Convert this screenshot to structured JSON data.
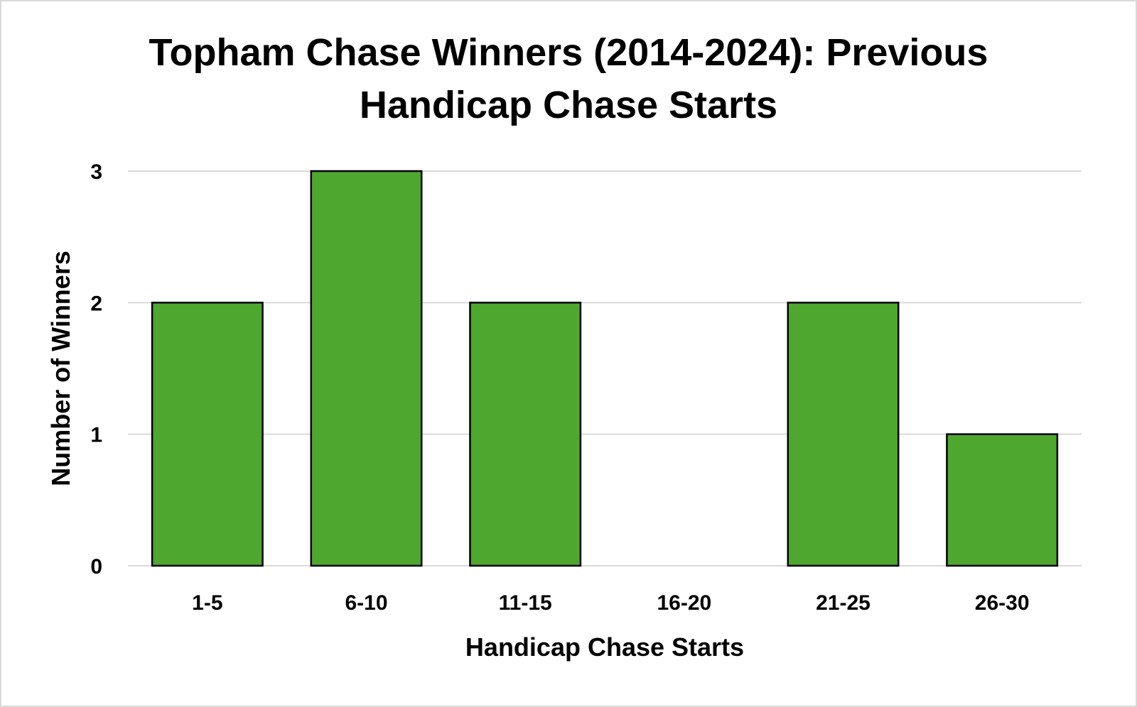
{
  "chart_data": {
    "type": "bar",
    "title_lines": [
      "Topham Chase Winners (2014-2024): Previous",
      "Handicap Chase Starts"
    ],
    "xlabel": "Handicap Chase Starts",
    "ylabel": "Number of Winners",
    "categories": [
      "1-5",
      "6-10",
      "11-15",
      "16-20",
      "21-25",
      "26-30"
    ],
    "values": [
      2,
      3,
      2,
      0,
      2,
      1
    ],
    "ylim": [
      0,
      3
    ],
    "yticks": [
      0,
      1,
      2,
      3
    ],
    "grid": true,
    "legend": "none",
    "colors": {
      "bar_fill": "#4ea72e",
      "bar_stroke": "#000000",
      "grid": "#d9d9d9"
    }
  }
}
